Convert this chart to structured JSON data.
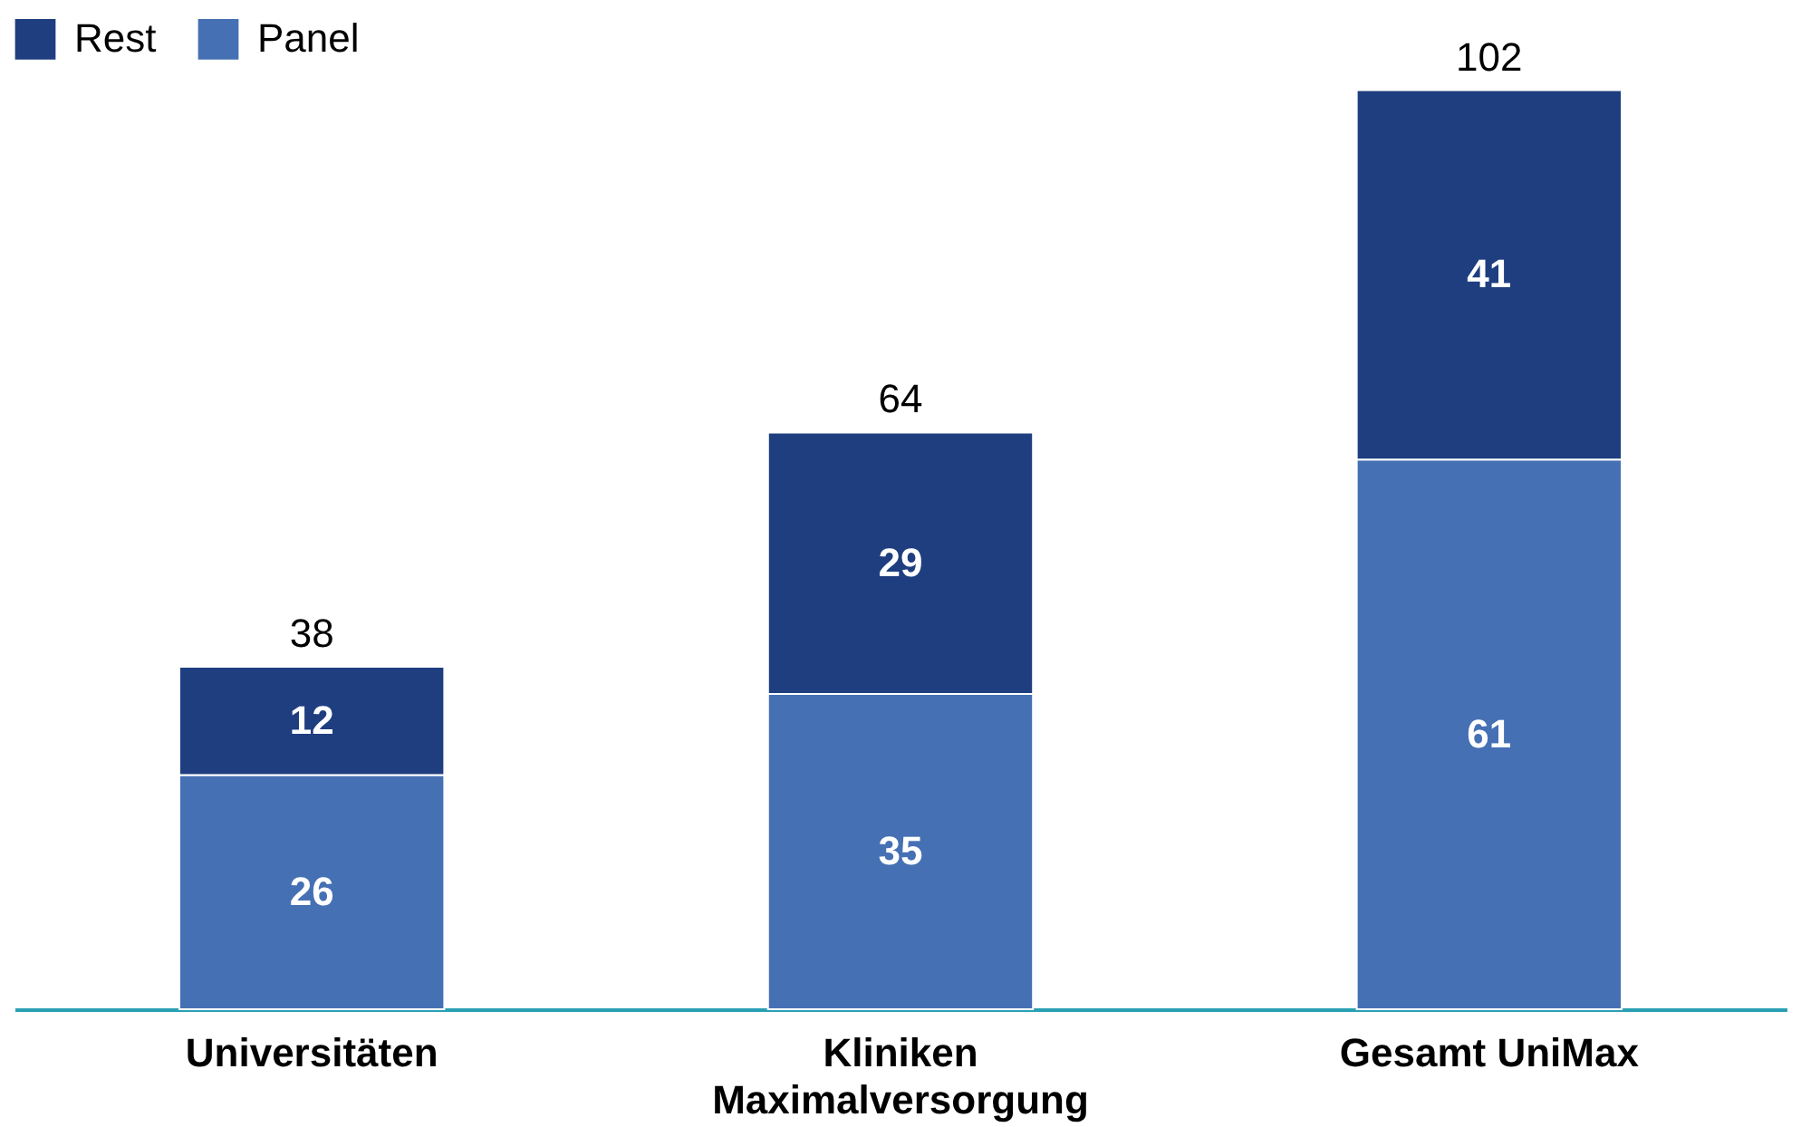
{
  "chart_data": {
    "type": "bar",
    "stacked": true,
    "categories": [
      "Universitäten",
      "Kliniken Maximalversorgung",
      "Gesamt UniMax"
    ],
    "series": [
      {
        "name": "Panel",
        "color": "#4570b4",
        "values": [
          26,
          35,
          61
        ]
      },
      {
        "name": "Rest",
        "color": "#1f3e80",
        "values": [
          12,
          29,
          41
        ]
      }
    ],
    "data_labels": true,
    "totals": [
      "38",
      "64",
      "102"
    ],
    "legend": "top left"
  }
}
